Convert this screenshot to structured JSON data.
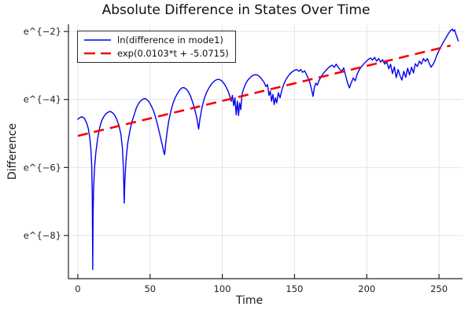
{
  "chart_data": {
    "type": "line",
    "title": "Absolute Difference in States Over Time",
    "xlabel": "Time",
    "ylabel": "Difference",
    "xlim": [
      -6.5,
      266.3
    ],
    "ylim_ln": [
      -9.27,
      -1.79
    ],
    "xticks": [
      0,
      50,
      100,
      150,
      200,
      250
    ],
    "yticks": [
      {
        "label": "e^{−2}",
        "ln": -2
      },
      {
        "label": "e^{−4}",
        "ln": -4
      },
      {
        "label": "e^{−6}",
        "ln": -6
      },
      {
        "label": "e^{−8}",
        "ln": -8
      }
    ],
    "grid": true,
    "legend_position": "top-left",
    "colors": {
      "series1": "#0000f0",
      "series2": "#f40000",
      "grid": "#e4e4e4",
      "spine": "#242424"
    },
    "series": [
      {
        "name": "ln(difference in mode1)",
        "style": "solid",
        "color_key": "series1",
        "points_t_ln": [
          [
            0,
            -4.58
          ],
          [
            1.5,
            -4.53
          ],
          [
            3,
            -4.51
          ],
          [
            4.5,
            -4.55
          ],
          [
            6,
            -4.68
          ],
          [
            7.2,
            -4.85
          ],
          [
            8.2,
            -5.1
          ],
          [
            9,
            -5.45
          ],
          [
            9.6,
            -5.95
          ],
          [
            10,
            -6.8
          ],
          [
            10.3,
            -9.0
          ],
          [
            10.55,
            -7.4
          ],
          [
            10.9,
            -6.6
          ],
          [
            11.6,
            -6.0
          ],
          [
            12.5,
            -5.55
          ],
          [
            13.7,
            -5.15
          ],
          [
            15,
            -4.85
          ],
          [
            16.5,
            -4.63
          ],
          [
            18,
            -4.5
          ],
          [
            19.5,
            -4.42
          ],
          [
            21,
            -4.37
          ],
          [
            22.5,
            -4.35
          ],
          [
            24,
            -4.39
          ],
          [
            25.5,
            -4.46
          ],
          [
            27,
            -4.59
          ],
          [
            28.5,
            -4.78
          ],
          [
            29.8,
            -5.02
          ],
          [
            30.9,
            -5.45
          ],
          [
            31.6,
            -6.1
          ],
          [
            32.1,
            -7.05
          ],
          [
            32.6,
            -6.35
          ],
          [
            33.4,
            -5.75
          ],
          [
            34.5,
            -5.3
          ],
          [
            36,
            -4.92
          ],
          [
            37.5,
            -4.65
          ],
          [
            39,
            -4.45
          ],
          [
            40.5,
            -4.25
          ],
          [
            42,
            -4.12
          ],
          [
            43.5,
            -4.04
          ],
          [
            45,
            -3.99
          ],
          [
            46.5,
            -3.97
          ],
          [
            48,
            -4.01
          ],
          [
            49.5,
            -4.08
          ],
          [
            51,
            -4.2
          ],
          [
            52.5,
            -4.35
          ],
          [
            54,
            -4.55
          ],
          [
            55.5,
            -4.8
          ],
          [
            57,
            -5.07
          ],
          [
            58.5,
            -5.35
          ],
          [
            59.6,
            -5.57
          ],
          [
            60.1,
            -5.62
          ],
          [
            60.8,
            -5.3
          ],
          [
            61.8,
            -4.95
          ],
          [
            63,
            -4.62
          ],
          [
            64.5,
            -4.32
          ],
          [
            66,
            -4.1
          ],
          [
            67.5,
            -3.94
          ],
          [
            69,
            -3.82
          ],
          [
            70.5,
            -3.72
          ],
          [
            72,
            -3.66
          ],
          [
            73.5,
            -3.65
          ],
          [
            75,
            -3.69
          ],
          [
            76.5,
            -3.77
          ],
          [
            78,
            -3.9
          ],
          [
            79.5,
            -4.08
          ],
          [
            81,
            -4.3
          ],
          [
            82.4,
            -4.56
          ],
          [
            83.6,
            -4.87
          ],
          [
            84.6,
            -4.55
          ],
          [
            86,
            -4.22
          ],
          [
            87.5,
            -3.98
          ],
          [
            89,
            -3.8
          ],
          [
            91,
            -3.64
          ],
          [
            93,
            -3.52
          ],
          [
            95,
            -3.44
          ],
          [
            96.5,
            -3.41
          ],
          [
            98,
            -3.41
          ],
          [
            99.5,
            -3.45
          ],
          [
            101,
            -3.52
          ],
          [
            102.5,
            -3.62
          ],
          [
            104,
            -3.75
          ],
          [
            105.3,
            -3.92
          ],
          [
            106.2,
            -4.05
          ],
          [
            107,
            -3.88
          ],
          [
            107.9,
            -4.18
          ],
          [
            108.7,
            -3.95
          ],
          [
            109.6,
            -4.45
          ],
          [
            110.4,
            -4.05
          ],
          [
            111.2,
            -4.47
          ],
          [
            112,
            -4.1
          ],
          [
            112.8,
            -4.3
          ],
          [
            113.6,
            -3.85
          ],
          [
            114.8,
            -3.68
          ],
          [
            116,
            -3.55
          ],
          [
            117.5,
            -3.44
          ],
          [
            119,
            -3.37
          ],
          [
            120.5,
            -3.31
          ],
          [
            122,
            -3.28
          ],
          [
            123.5,
            -3.27
          ],
          [
            125,
            -3.3
          ],
          [
            126.3,
            -3.35
          ],
          [
            127.6,
            -3.42
          ],
          [
            129,
            -3.5
          ],
          [
            130.2,
            -3.62
          ],
          [
            131.3,
            -3.56
          ],
          [
            132.3,
            -3.88
          ],
          [
            133.2,
            -3.75
          ],
          [
            134.1,
            -4.05
          ],
          [
            135,
            -3.85
          ],
          [
            135.9,
            -4.15
          ],
          [
            136.8,
            -3.95
          ],
          [
            137.7,
            -4.1
          ],
          [
            138.8,
            -3.8
          ],
          [
            140,
            -3.95
          ],
          [
            141.2,
            -3.72
          ],
          [
            142.6,
            -3.55
          ],
          [
            144,
            -3.42
          ],
          [
            145.5,
            -3.32
          ],
          [
            147,
            -3.24
          ],
          [
            148.5,
            -3.18
          ],
          [
            150,
            -3.14
          ],
          [
            151.5,
            -3.12
          ],
          [
            153,
            -3.17
          ],
          [
            154.3,
            -3.12
          ],
          [
            155.6,
            -3.2
          ],
          [
            157,
            -3.16
          ],
          [
            158.3,
            -3.27
          ],
          [
            159.6,
            -3.38
          ],
          [
            160.8,
            -3.53
          ],
          [
            161.9,
            -3.73
          ],
          [
            162.8,
            -3.91
          ],
          [
            163.7,
            -3.65
          ],
          [
            164.7,
            -3.52
          ],
          [
            165.8,
            -3.58
          ],
          [
            167,
            -3.44
          ],
          [
            168.4,
            -3.33
          ],
          [
            170,
            -3.23
          ],
          [
            171.6,
            -3.15
          ],
          [
            173.2,
            -3.08
          ],
          [
            174.8,
            -3.02
          ],
          [
            176.2,
            -2.99
          ],
          [
            177.5,
            -3.06
          ],
          [
            178.8,
            -2.96
          ],
          [
            180.1,
            -3.04
          ],
          [
            181.4,
            -3.12
          ],
          [
            182.7,
            -3.17
          ],
          [
            184,
            -3.07
          ],
          [
            185.3,
            -3.28
          ],
          [
            186.6,
            -3.5
          ],
          [
            188,
            -3.66
          ],
          [
            189.3,
            -3.5
          ],
          [
            190.6,
            -3.37
          ],
          [
            192,
            -3.45
          ],
          [
            193.4,
            -3.25
          ],
          [
            194.8,
            -3.13
          ],
          [
            196.3,
            -3.04
          ],
          [
            198,
            -2.95
          ],
          [
            199.6,
            -2.88
          ],
          [
            201.2,
            -2.82
          ],
          [
            202.6,
            -2.78
          ],
          [
            204,
            -2.84
          ],
          [
            205.4,
            -2.76
          ],
          [
            206.8,
            -2.87
          ],
          [
            208.2,
            -2.8
          ],
          [
            209.6,
            -2.9
          ],
          [
            211,
            -2.83
          ],
          [
            212.4,
            -2.96
          ],
          [
            213.8,
            -2.89
          ],
          [
            215.2,
            -3.1
          ],
          [
            216.5,
            -2.96
          ],
          [
            217.8,
            -3.24
          ],
          [
            219.1,
            -3.04
          ],
          [
            220.4,
            -3.36
          ],
          [
            221.7,
            -3.12
          ],
          [
            223,
            -3.3
          ],
          [
            224.3,
            -3.43
          ],
          [
            225.6,
            -3.17
          ],
          [
            227,
            -3.35
          ],
          [
            228.3,
            -3.08
          ],
          [
            229.6,
            -3.28
          ],
          [
            231,
            -3.05
          ],
          [
            232.3,
            -3.22
          ],
          [
            233.6,
            -2.95
          ],
          [
            235,
            -3.03
          ],
          [
            236.4,
            -2.87
          ],
          [
            237.8,
            -2.96
          ],
          [
            239.2,
            -2.8
          ],
          [
            240.6,
            -2.88
          ],
          [
            242,
            -2.8
          ],
          [
            243.3,
            -2.95
          ],
          [
            244.5,
            -3.05
          ],
          [
            245.8,
            -2.97
          ],
          [
            247,
            -2.87
          ],
          [
            248.3,
            -2.72
          ],
          [
            249.8,
            -2.58
          ],
          [
            251.3,
            -2.45
          ],
          [
            252.8,
            -2.33
          ],
          [
            254.3,
            -2.22
          ],
          [
            255.8,
            -2.11
          ],
          [
            257.2,
            -2.02
          ],
          [
            258.3,
            -1.96
          ],
          [
            259.2,
            -1.93
          ],
          [
            260,
            -1.99
          ],
          [
            260.8,
            -1.95
          ],
          [
            261.6,
            -2.07
          ],
          [
            262.5,
            -2.17
          ],
          [
            263.3,
            -2.28
          ]
        ]
      },
      {
        "name": "exp(0.0103*t + -5.0715)",
        "style": "dashed",
        "color_key": "series2",
        "slope": 0.0103,
        "intercept": -5.0715,
        "t_start": 0,
        "t_end": 258
      }
    ]
  }
}
